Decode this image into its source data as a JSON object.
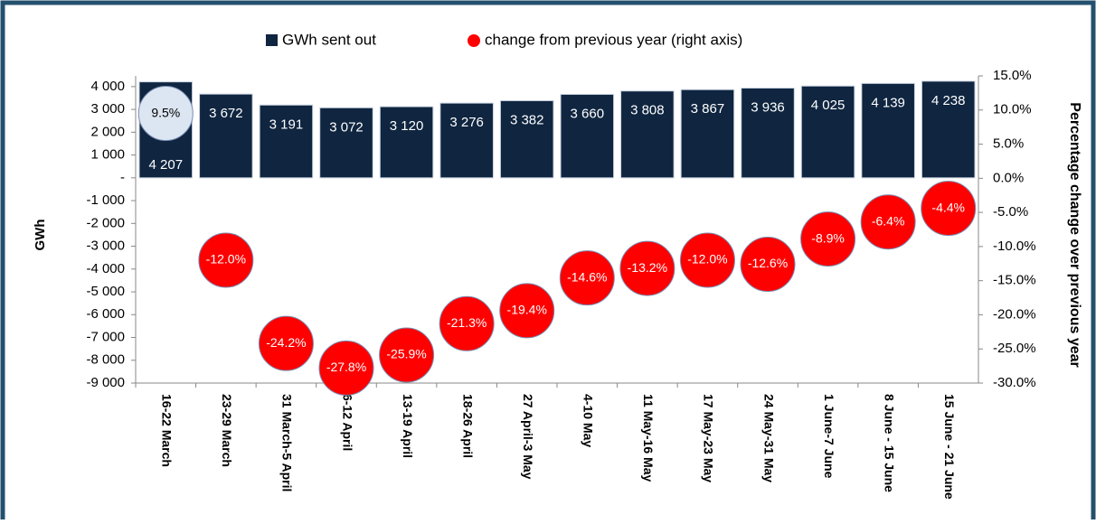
{
  "chart_data": {
    "type": "bar-bubble",
    "categories": [
      "16-22 March",
      "23-29 March",
      "31 March-5 April",
      "6-12 April",
      "13-19 April",
      "18-26 April",
      "27 April-3 May",
      "4-10 May",
      "11 May-16 May",
      "17 May-23 May",
      "24 May-31 May",
      "1 June-7 June",
      "8 June - 15 June",
      "15 June - 21 June"
    ],
    "series": [
      {
        "name": "GWh sent out",
        "color": "#0f2540",
        "values": [
          4207,
          3672,
          3191,
          3072,
          3120,
          3276,
          3382,
          3660,
          3808,
          3867,
          3936,
          4025,
          4139,
          4238
        ],
        "value_labels": [
          "4 207",
          "3 672",
          "3 191",
          "3 072",
          "3 120",
          "3 276",
          "3 382",
          "3 660",
          "3 808",
          "3 867",
          "3 936",
          "4 025",
          "4 139",
          "4 238"
        ]
      },
      {
        "name": "change from previous year (right axis)",
        "color": "#ff0000",
        "axis": "y2",
        "point_colors": [
          "#dce6f2",
          "#ff0000",
          "#ff0000",
          "#ff0000",
          "#ff0000",
          "#ff0000",
          "#ff0000",
          "#ff0000",
          "#ff0000",
          "#ff0000",
          "#ff0000",
          "#ff0000",
          "#ff0000",
          "#ff0000"
        ],
        "values": [
          9.5,
          -12.0,
          -24.2,
          -27.8,
          -25.9,
          -21.3,
          -19.4,
          -14.6,
          -13.2,
          -12.0,
          -12.6,
          -8.9,
          -6.4,
          -4.4
        ],
        "value_labels": [
          "9.5%",
          "-12.0%",
          "-24.2%",
          "-27.8%",
          "-25.9%",
          "-21.3%",
          "-19.4%",
          "-14.6%",
          "-13.2%",
          "-12.0%",
          "-12.6%",
          "-8.9%",
          "-6.4%",
          "-4.4%"
        ]
      }
    ],
    "y_label": "GWh",
    "y2_label": "Percentage change over previous year",
    "ylim": [
      -9000,
      4470
    ],
    "yticks": [
      {
        "value": 4000,
        "label": "4 000"
      },
      {
        "value": 3000,
        "label": "3 000"
      },
      {
        "value": 2000,
        "label": "2 000"
      },
      {
        "value": 1000,
        "label": "1 000"
      },
      {
        "value": 0,
        "label": "-"
      },
      {
        "value": -1000,
        "label": "-1 000"
      },
      {
        "value": -2000,
        "label": "-2 000"
      },
      {
        "value": -3000,
        "label": "-3 000"
      },
      {
        "value": -4000,
        "label": "-4 000"
      },
      {
        "value": -5000,
        "label": "-5 000"
      },
      {
        "value": -6000,
        "label": "-6 000"
      },
      {
        "value": -7000,
        "label": "-7 000"
      },
      {
        "value": -8000,
        "label": "-8 000"
      },
      {
        "value": -9000,
        "label": "-9 000"
      }
    ],
    "y2lim": [
      -30,
      15
    ],
    "y2ticks": [
      {
        "value": 15,
        "label": "15.0%"
      },
      {
        "value": 10,
        "label": "10.0%"
      },
      {
        "value": 5,
        "label": "5.0%"
      },
      {
        "value": 0,
        "label": "0.0%"
      },
      {
        "value": -5,
        "label": "-5.0%"
      },
      {
        "value": -10,
        "label": "-10.0%"
      },
      {
        "value": -15,
        "label": "-15.0%"
      },
      {
        "value": -20,
        "label": "-20.0%"
      },
      {
        "value": -25,
        "label": "-25.0%"
      },
      {
        "value": -30,
        "label": "-30.0%"
      }
    ]
  }
}
